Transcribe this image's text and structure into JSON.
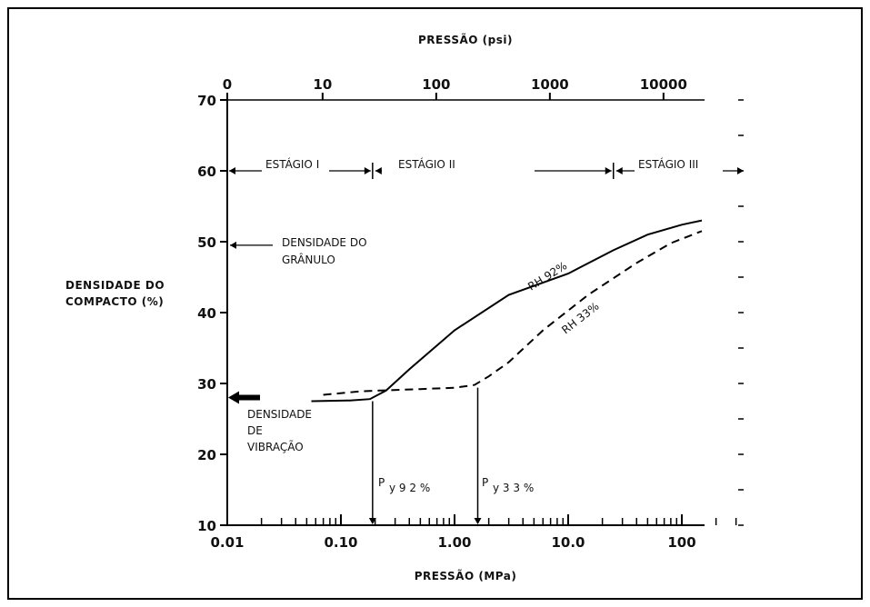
{
  "chart_data": {
    "type": "line",
    "x_axis": {
      "label": "PRESSÃO (MPa)",
      "scale": "log",
      "range": [
        0.01,
        300
      ],
      "ticks": [
        "0.01",
        "0.10",
        "1.00",
        "10.0",
        "100"
      ],
      "tick_values": [
        0.01,
        0.1,
        1,
        10,
        100
      ]
    },
    "x_axis_top": {
      "label": "PRESSÃO (psi)",
      "ticks": [
        "0",
        "10",
        "100",
        "1000",
        "10000"
      ],
      "tick_values_mpa": [
        0.01,
        0.069,
        0.69,
        6.9,
        69
      ]
    },
    "y_axis": {
      "label_line1": "DENSIDADE DO",
      "label_line2": "COMPACTO (%)",
      "range": [
        10,
        70
      ],
      "ticks": [
        "10",
        "20",
        "30",
        "40",
        "50",
        "60",
        "70"
      ],
      "tick_values": [
        10,
        20,
        30,
        40,
        50,
        60,
        70
      ]
    },
    "series": [
      {
        "name": "RH 92%",
        "style": "solid",
        "points": [
          [
            0.055,
            27.5
          ],
          [
            0.12,
            27.6
          ],
          [
            0.18,
            27.8
          ],
          [
            0.25,
            29
          ],
          [
            0.4,
            32
          ],
          [
            1.0,
            37.5
          ],
          [
            3.0,
            42.5
          ],
          [
            10,
            45.5
          ],
          [
            25,
            48.8
          ],
          [
            50,
            51
          ],
          [
            100,
            52.4
          ],
          [
            150,
            53
          ]
        ]
      },
      {
        "name": "RH 33%",
        "style": "dashed",
        "points": [
          [
            0.07,
            28.4
          ],
          [
            0.15,
            28.9
          ],
          [
            0.22,
            29
          ],
          [
            0.5,
            29.2
          ],
          [
            1.0,
            29.4
          ],
          [
            1.5,
            29.8
          ],
          [
            2.0,
            31
          ],
          [
            3.0,
            33
          ],
          [
            6.0,
            37.5
          ],
          [
            15,
            42.5
          ],
          [
            40,
            47
          ],
          [
            80,
            49.8
          ],
          [
            150,
            51.5
          ]
        ]
      }
    ],
    "annotations": {
      "stage1": "ESTÁGIO I",
      "stage2": "ESTÁGIO II",
      "stage3": "ESTÁGIO III",
      "granule_line1": "DENSIDADE DO",
      "granule_line2": "GRÂNULO",
      "granule_density": 49.5,
      "vibration_line1": "DENSIDADE",
      "vibration_line2": "DE",
      "vibration_line3": "VIBRAÇÃO",
      "vibration_density": 27.5,
      "py92": "P",
      "py92_sub": "y 9 2 %",
      "py92_pressure": 0.19,
      "py33": "P",
      "py33_sub": "y 3 3 %",
      "py33_pressure": 1.6,
      "rh92_label": "RH 92%",
      "rh33_label": "RH 33%",
      "stage_boundaries": [
        0.19,
        25
      ]
    },
    "grid": false,
    "legend": "none"
  }
}
